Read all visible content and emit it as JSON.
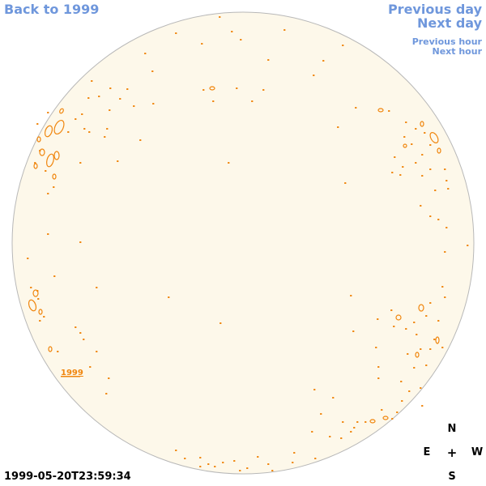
{
  "nav": {
    "back_label": "Back to 1999",
    "prev_day_label": "Previous day",
    "next_day_label": "Next day",
    "prev_hour_label": "Previous hour",
    "next_hour_label": "Next hour"
  },
  "map": {
    "year_label": "1999",
    "timestamp": "1999-05-20T23:59:34"
  },
  "compass": {
    "n": "N",
    "e": "E",
    "center": "+",
    "w": "W",
    "s": "S"
  },
  "colors": {
    "link": "#6f97dc",
    "disk_fill": "#fdf8ea",
    "disk_stroke": "#b8b8b8",
    "contour": "#f0860e"
  }
}
